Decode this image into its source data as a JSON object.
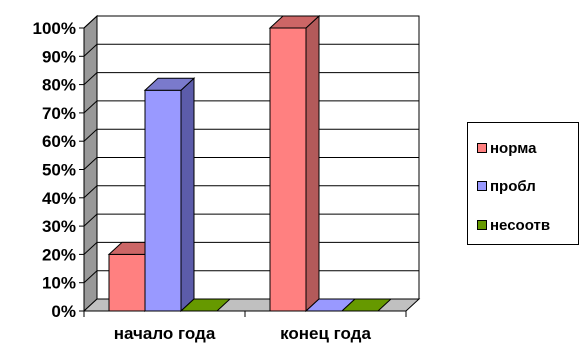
{
  "chart_data": {
    "type": "bar",
    "style": "3d-clustered-column",
    "categories": [
      "начало года",
      "конец года"
    ],
    "series": [
      {
        "name": "норма",
        "values": [
          20,
          100
        ],
        "color": "#FF8080",
        "side_color": "#B35A5A",
        "top_color": "#CC6666"
      },
      {
        "name": "пробл",
        "values": [
          78,
          0
        ],
        "color": "#9999FF",
        "side_color": "#5C5CAA",
        "top_color": "#7A7ACC"
      },
      {
        "name": "несоотв",
        "values": [
          0,
          0
        ],
        "color": "#669900",
        "side_color": "#4D7300",
        "top_color": "#5C8A00"
      }
    ],
    "yticks": [
      "0%",
      "10%",
      "20%",
      "30%",
      "40%",
      "50%",
      "60%",
      "70%",
      "80%",
      "90%",
      "100%"
    ],
    "ylim": [
      0,
      100
    ],
    "grid": true,
    "legend_position": "right"
  }
}
